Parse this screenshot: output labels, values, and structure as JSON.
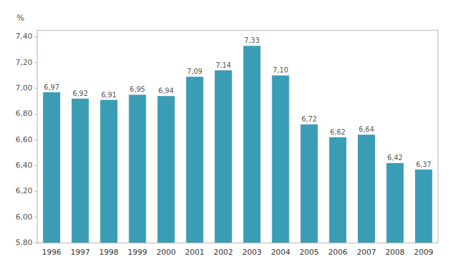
{
  "chart_data": {
    "type": "bar",
    "y_label": "%",
    "categories": [
      "1996",
      "1997",
      "1998",
      "1999",
      "2000",
      "2001",
      "2002",
      "2003",
      "2004",
      "2005",
      "2006",
      "2007",
      "2008",
      "2009"
    ],
    "values": [
      6.97,
      6.92,
      6.91,
      6.95,
      6.94,
      7.09,
      7.14,
      7.33,
      7.1,
      6.72,
      6.62,
      6.64,
      6.42,
      6.37
    ],
    "value_labels": [
      "6,97",
      "6,92",
      "6,91",
      "6,95",
      "6,94",
      "7,09",
      "7,14",
      "7,33",
      "7,10",
      "6,72",
      "6,62",
      "6,64",
      "6,42",
      "6,37"
    ],
    "data_labels": true,
    "color": "#3a9db5",
    "ylim": [
      5.8,
      7.45
    ],
    "yticks": [
      {
        "value": 5.8,
        "label": "5,80"
      },
      {
        "value": 6.0,
        "label": "6,00"
      },
      {
        "value": 6.2,
        "label": "6,20"
      },
      {
        "value": 6.4,
        "label": "6,40"
      },
      {
        "value": 6.6,
        "label": "6,60"
      },
      {
        "value": 6.8,
        "label": "6,80"
      },
      {
        "value": 7.0,
        "label": "7,00"
      },
      {
        "value": 7.2,
        "label": "7,20"
      },
      {
        "value": 7.4,
        "label": "7,40"
      }
    ],
    "grid": false
  }
}
